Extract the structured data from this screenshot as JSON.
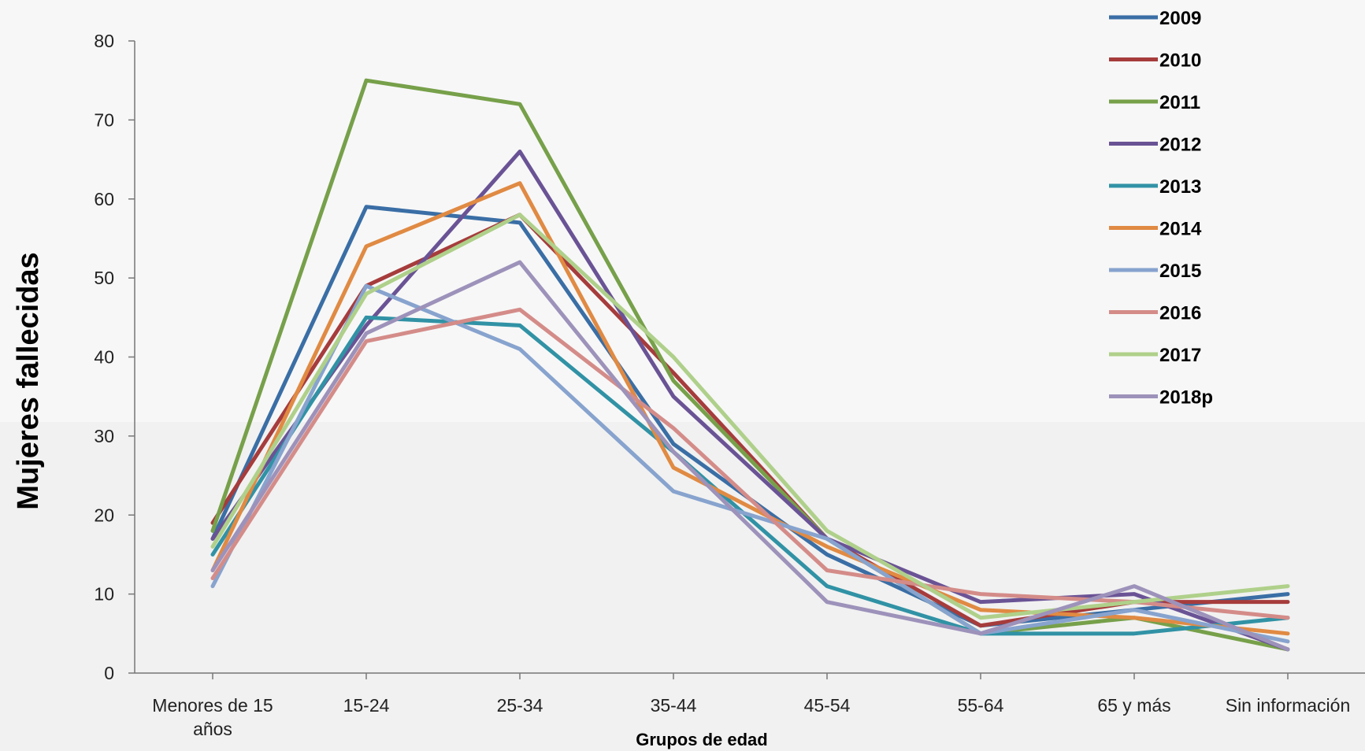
{
  "chart_data": {
    "type": "line",
    "title": "",
    "xlabel": "Grupos de edad",
    "ylabel": "Mujeres fallecidas",
    "ylim": [
      0,
      80
    ],
    "yticks": [
      "0",
      "10",
      "20",
      "30",
      "40",
      "50",
      "60",
      "70",
      "80"
    ],
    "categories": [
      "Menores de 15 años",
      "15-24",
      "25-34",
      "35-44",
      "45-54",
      "55-64",
      "65 y más",
      "Sin información"
    ],
    "legend_position": "top-right",
    "series": [
      {
        "name": "2009",
        "color": "#3a6ea5",
        "values": [
          17,
          59,
          57,
          29,
          15,
          6,
          8,
          10
        ]
      },
      {
        "name": "2010",
        "color": "#a63c3c",
        "values": [
          19,
          49,
          58,
          38,
          17,
          6,
          9,
          9
        ]
      },
      {
        "name": "2011",
        "color": "#77a04a",
        "values": [
          18,
          75,
          72,
          37,
          17,
          5,
          7,
          3
        ]
      },
      {
        "name": "2012",
        "color": "#6a5395",
        "values": [
          17,
          44,
          66,
          35,
          17,
          9,
          10,
          3
        ]
      },
      {
        "name": "2013",
        "color": "#3192a5",
        "values": [
          15,
          45,
          44,
          28,
          11,
          5,
          5,
          7
        ]
      },
      {
        "name": "2014",
        "color": "#e08a43",
        "values": [
          13,
          54,
          62,
          26,
          16,
          8,
          7,
          5
        ]
      },
      {
        "name": "2015",
        "color": "#87a3ce",
        "values": [
          11,
          49,
          41,
          23,
          17,
          5,
          8,
          4
        ]
      },
      {
        "name": "2016",
        "color": "#d48c89",
        "values": [
          12,
          42,
          46,
          31,
          13,
          10,
          9,
          7
        ]
      },
      {
        "name": "2017",
        "color": "#afd08a",
        "values": [
          16,
          48,
          58,
          40,
          18,
          7,
          9,
          11
        ]
      },
      {
        "name": "2018p",
        "color": "#9d92ba",
        "values": [
          13,
          43,
          52,
          28,
          9,
          5,
          11,
          3
        ]
      }
    ]
  }
}
